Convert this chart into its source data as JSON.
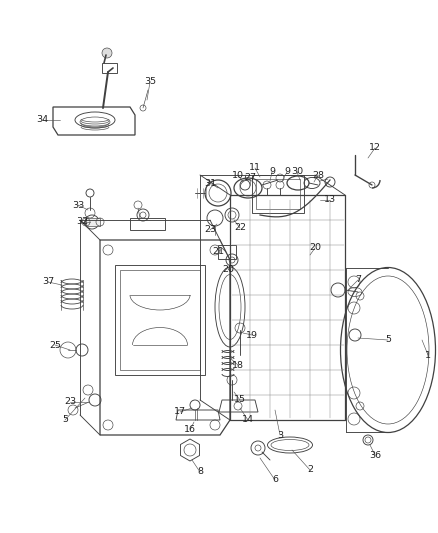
{
  "bg_color": "#ffffff",
  "line_color": "#404040",
  "label_color": "#222222",
  "fig_width": 4.38,
  "fig_height": 5.33,
  "dpi": 100,
  "lw_main": 0.9,
  "lw_med": 0.65,
  "lw_thin": 0.45,
  "font_size": 7.0
}
